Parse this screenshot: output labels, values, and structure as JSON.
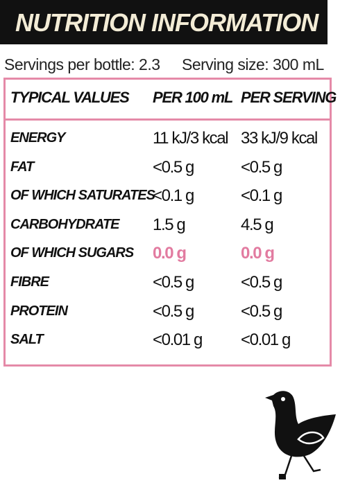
{
  "header": {
    "title": "NUTRITION INFORMATION"
  },
  "servings": {
    "per_bottle": "Servings per bottle: 2.3",
    "size": "Serving size: 300 mL"
  },
  "table": {
    "columns": [
      "TYPICAL VALUES",
      "PER 100 mL",
      "PER SERVING"
    ],
    "rows": [
      [
        "ENERGY",
        "11 kJ/3 kcal",
        "33 kJ/9 kcal"
      ],
      [
        "FAT",
        "<0.5 g",
        "<0.5 g"
      ],
      [
        "OF WHICH SATURATES",
        "<0.1 g",
        "<0.1 g"
      ],
      [
        "CARBOHYDRATE",
        "1.5 g",
        "4.5 g"
      ],
      [
        "OF WHICH SUGARS",
        "0.0 g",
        "0.0 g"
      ],
      [
        "FIBRE",
        "<0.5 g",
        "<0.5 g"
      ],
      [
        "PROTEIN",
        "<0.5 g",
        "<0.5 g"
      ],
      [
        "SALT",
        "<0.01 g",
        "<0.01 g"
      ]
    ]
  }
}
